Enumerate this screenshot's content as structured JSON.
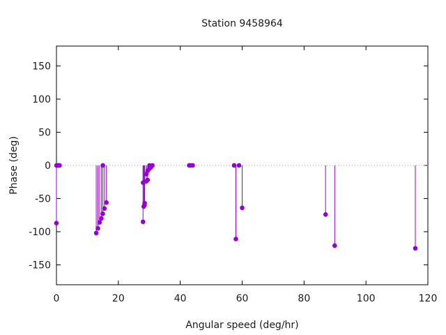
{
  "chart_data": {
    "type": "scatter",
    "style": "impulses-with-points",
    "title": "Station 9458964",
    "xlabel": "Angular speed (deg/hr)",
    "ylabel": "Phase (deg)",
    "xlim": [
      0,
      120
    ],
    "ylim": [
      -180,
      180
    ],
    "xticks": [
      0,
      20,
      40,
      60,
      80,
      100,
      120
    ],
    "yticks": [
      -150,
      -100,
      -50,
      0,
      50,
      100,
      150
    ],
    "grid": false,
    "legend": "none",
    "zero_line": true,
    "series_color": "#9400d3",
    "zero_line_color": "#a0a0a0",
    "x": [
      0.0,
      0.04,
      0.08,
      0.5,
      0.55,
      0.6,
      1.0,
      12.85,
      13.4,
      13.94,
      14.5,
      14.96,
      15.0,
      15.5,
      16.14,
      27.97,
      28.0,
      28.2,
      28.43,
      28.51,
      29.0,
      29.05,
      29.46,
      29.5,
      30.0,
      30.08,
      30.5,
      31.0,
      42.9,
      43.0,
      43.5,
      44.0,
      57.4,
      57.97,
      58.98,
      60.0,
      86.95,
      89.9,
      115.94
    ],
    "y": [
      -87,
      0,
      0,
      0,
      0,
      0,
      0,
      -102,
      -95,
      -86,
      -80,
      -73,
      0,
      -65,
      -56,
      -85,
      -26,
      -62,
      -60,
      -57,
      -24,
      -13,
      -22,
      -8,
      -5,
      0,
      -3,
      0,
      0,
      0,
      0,
      0,
      0,
      -111,
      0,
      -64,
      -74,
      -121,
      -125
    ]
  }
}
